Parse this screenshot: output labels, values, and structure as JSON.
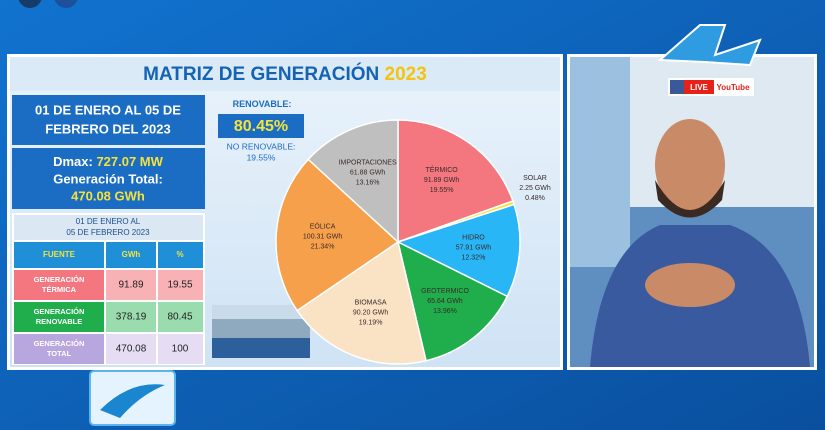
{
  "header": {
    "title": "MATRIZ DE GENERACIÓN",
    "year": "2023"
  },
  "period": {
    "line1": "01 DE ENERO AL 05 DE",
    "line2": "FEBRERO DEL 2023"
  },
  "demand": {
    "dmax_label": "Dmax:",
    "dmax_value": "727.07 MW",
    "total_label": "Generación Total:",
    "total_value": "470.08 GWh"
  },
  "share": {
    "renewable_label": "RENOVABLE:",
    "renewable_value": "80.45%",
    "nonrenewable_label": "NO RENOVABLE:",
    "nonrenewable_value": "19.55%"
  },
  "table": {
    "caption": [
      "01 DE ENERO AL",
      "05 DE FEBRERO 2023"
    ],
    "columns": [
      "FUENTE",
      "GWh",
      "%"
    ],
    "rows": [
      [
        [
          "GENERACIÓN",
          "TÉRMICA"
        ],
        "91.89",
        "19.55"
      ],
      [
        [
          "GENERACIÓN",
          "RENOVABLE"
        ],
        "378.19",
        "80.45"
      ],
      [
        [
          "GENERACIÓN",
          "TOTAL"
        ],
        "470.08",
        "100"
      ]
    ]
  },
  "overlay": {
    "live": "LIVE",
    "youtube": "YouTube"
  },
  "chart_data": {
    "type": "pie",
    "categories": [
      "TÉRMICO",
      "SOLAR",
      "HIDRO",
      "GEOTERMICO",
      "BIOMASA",
      "EÓLICA",
      "IMPORTACIONES"
    ],
    "values": [
      19.55,
      0.48,
      12.32,
      13.96,
      19.19,
      21.34,
      13.16
    ],
    "value_labels": [
      "19.55%",
      "0.48%",
      "12.32%",
      "13.96%",
      "19.19%",
      "21.34%",
      "13.16%"
    ],
    "energy_labels": [
      "91.89 GWh",
      "2.25 GWh",
      "57.91 GWh",
      "65.64 GWh",
      "90.20 GWh",
      "100.31 GWh",
      "61.88  GWh"
    ],
    "colors": [
      "#f4777f",
      "#f5e23a",
      "#29b6f6",
      "#1fae4b",
      "#fae3c4",
      "#f7a04b",
      "#bfbfbf"
    ]
  }
}
